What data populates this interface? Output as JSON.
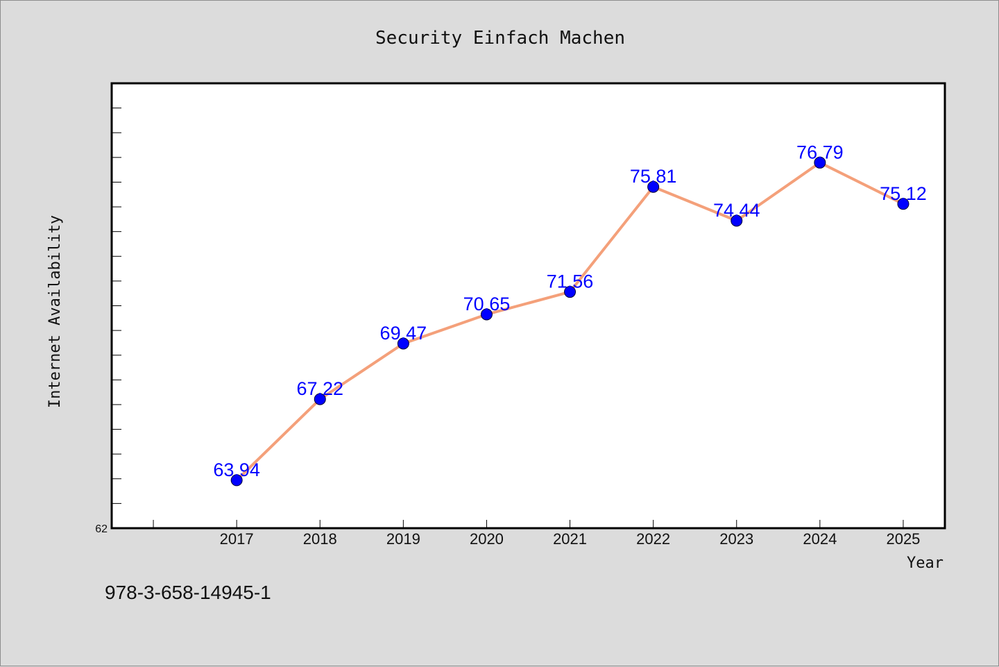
{
  "chart_data": {
    "type": "line",
    "title": "Security Einfach Machen",
    "xlabel": "Year",
    "ylabel": "Internet Availability",
    "categories": [
      "2017",
      "2018",
      "2019",
      "2020",
      "2021",
      "2022",
      "2023",
      "2024",
      "2025"
    ],
    "series": [
      {
        "values": [
          63.94,
          67.22,
          69.47,
          70.65,
          71.56,
          75.81,
          74.44,
          76.79,
          75.12
        ],
        "labels": [
          "63.94",
          "67.22",
          "69.47",
          "70.65",
          "71.56",
          "75.81",
          "74.44",
          "76.79",
          "75.12"
        ],
        "line_color": "#f4a07a",
        "marker_color": "#0000ff",
        "label_color": "#0000ff"
      }
    ],
    "xlim": [
      2015.5,
      2025.5
    ],
    "ylim": [
      62,
      80
    ],
    "ytick_labels": [
      "62"
    ],
    "grid": false,
    "legend": "none"
  },
  "footer": {
    "isbn": "978-3-658-14945-1"
  },
  "colors": {
    "background": "#dcdcdc",
    "plot_background": "#ffffff",
    "axis": "#000000"
  }
}
